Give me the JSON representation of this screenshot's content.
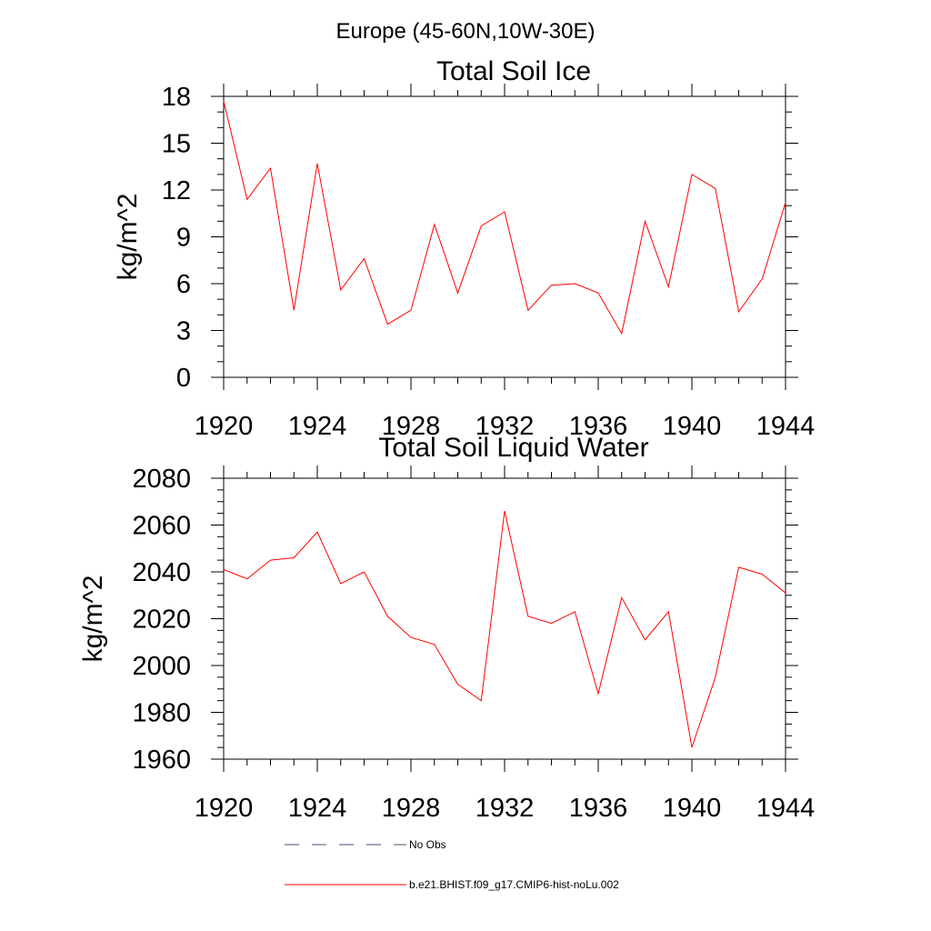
{
  "figure": {
    "title": "Europe (45-60N,10W-30E)"
  },
  "colors": {
    "series": "#ff0000",
    "obs": "#4a4a7a",
    "axis": "#000000"
  },
  "chart_data": [
    {
      "type": "line",
      "title": "Total Soil Ice",
      "xlabel": "",
      "ylabel": "kg/m^2",
      "xlim": [
        1920,
        1944
      ],
      "ylim": [
        0,
        18
      ],
      "x_ticks": [
        1920,
        1924,
        1928,
        1932,
        1936,
        1940,
        1944
      ],
      "y_ticks": [
        0,
        3,
        6,
        9,
        12,
        15,
        18
      ],
      "y_minor_step": 1,
      "x_minor_step": 1,
      "grid": false,
      "x": [
        1920,
        1921,
        1922,
        1923,
        1924,
        1925,
        1926,
        1927,
        1928,
        1929,
        1930,
        1931,
        1932,
        1933,
        1934,
        1935,
        1936,
        1937,
        1938,
        1939,
        1940,
        1941,
        1942,
        1943,
        1944
      ],
      "series": [
        {
          "name": "b.e21.BHIST.f09_g17.CMIP6-hist-noLu.002",
          "values": [
            17.7,
            11.4,
            13.4,
            4.3,
            13.7,
            5.6,
            7.6,
            3.4,
            4.3,
            9.8,
            5.4,
            9.7,
            10.6,
            4.3,
            5.9,
            6.0,
            5.4,
            2.8,
            10.0,
            5.8,
            13.0,
            12.1,
            4.2,
            6.3,
            11.2
          ]
        }
      ]
    },
    {
      "type": "line",
      "title": "Total Soil Liquid Water",
      "xlabel": "",
      "ylabel": "kg/m^2",
      "xlim": [
        1920,
        1944
      ],
      "ylim": [
        1960,
        2080
      ],
      "x_ticks": [
        1920,
        1924,
        1928,
        1932,
        1936,
        1940,
        1944
      ],
      "y_ticks": [
        1960,
        1980,
        2000,
        2020,
        2040,
        2060,
        2080
      ],
      "y_minor_step": 5,
      "x_minor_step": 1,
      "grid": false,
      "x": [
        1920,
        1921,
        1922,
        1923,
        1924,
        1925,
        1926,
        1927,
        1928,
        1929,
        1930,
        1931,
        1932,
        1933,
        1934,
        1935,
        1936,
        1937,
        1938,
        1939,
        1940,
        1941,
        1942,
        1943,
        1944
      ],
      "series": [
        {
          "name": "b.e21.BHIST.f09_g17.CMIP6-hist-noLu.002",
          "values": [
            2041,
            2037,
            2045,
            2046,
            2057,
            2035,
            2040,
            2021,
            2012,
            2009,
            1992,
            1985,
            2066,
            2021,
            2018,
            2023,
            1988,
            2029,
            2011,
            2023,
            1965,
            1995,
            2042,
            2039,
            2031
          ]
        }
      ]
    }
  ],
  "legend": {
    "items": [
      {
        "label": "No Obs",
        "style": "dashed",
        "color": "#4a4a7a"
      },
      {
        "label": "b.e21.BHIST.f09_g17.CMIP6-hist-noLu.002",
        "style": "solid",
        "color": "#ff0000"
      }
    ]
  }
}
